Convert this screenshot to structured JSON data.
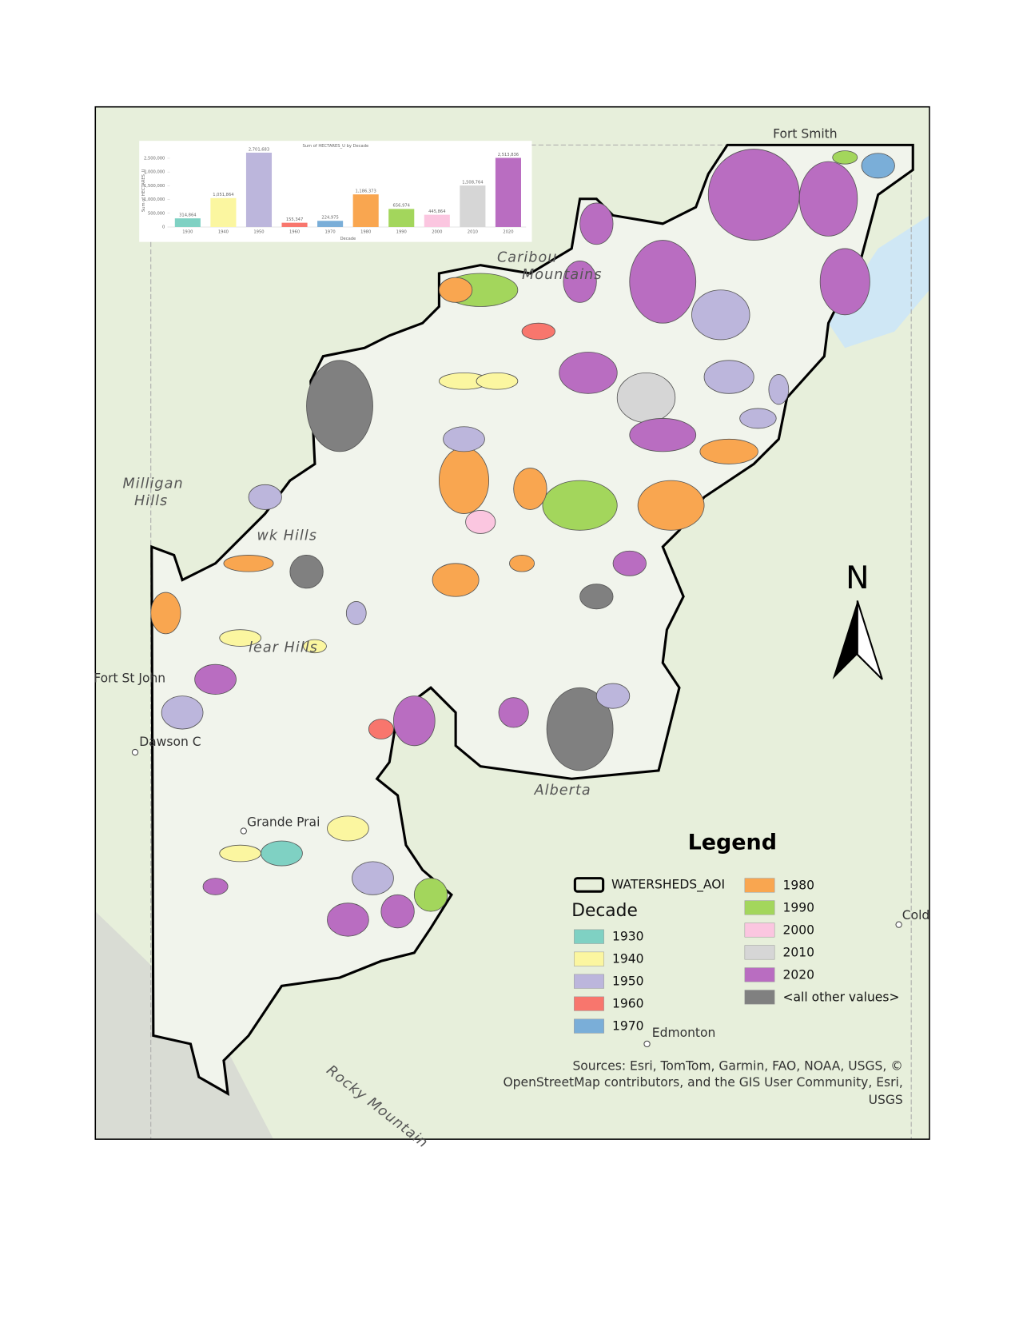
{
  "places": [
    "Fort Smith",
    "Caribou",
    "Mountains",
    "Milligan",
    "Hills",
    "wk Hills",
    "lear Hills",
    "Fort St John",
    "Dawson C",
    "Grande Prai",
    "Alberta",
    "Edmonton",
    "Cold",
    "Rocky Mountain"
  ],
  "legend": {
    "title": "Legend",
    "aoi": "WATERSHEDS_AOI",
    "field": "Decade",
    "items": [
      {
        "label": "1930",
        "color": "#7fd1c3"
      },
      {
        "label": "1940",
        "color": "#fbf6a0"
      },
      {
        "label": "1950",
        "color": "#bcb6dc"
      },
      {
        "label": "1960",
        "color": "#f8766d"
      },
      {
        "label": "1970",
        "color": "#7aaed8"
      },
      {
        "label": "1980",
        "color": "#f9a650"
      },
      {
        "label": "1990",
        "color": "#a3d65c"
      },
      {
        "label": "2000",
        "color": "#fbc6e0"
      },
      {
        "label": "2010",
        "color": "#d6d6d6"
      },
      {
        "label": "2020",
        "color": "#b96dc1"
      },
      {
        "label": "<all other values>",
        "color": "#808080"
      }
    ]
  },
  "north": "N",
  "attribution": [
    "Sources: Esri, TomTom, Garmin, FAO, NOAA, USGS, ©",
    "OpenStreetMap contributors, and the GIS User Community, Esri,",
    "USGS"
  ],
  "chart_data": {
    "type": "bar",
    "title": "Sum of HECTARES_U by Decade",
    "x_label": "Decade",
    "y_label": "Sum of HECTARES_U",
    "categories": [
      "1930",
      "1940",
      "1950",
      "1960",
      "1970",
      "1980",
      "1990",
      "2000",
      "2010",
      "2020"
    ],
    "values": [
      314864,
      1051864,
      2701683,
      155347,
      224975,
      1186373,
      656974,
      445864,
      1508764,
      2513836
    ],
    "value_labels": [
      "314,864",
      "1,051,864",
      "2,701,683",
      "155,347",
      "224,975",
      "1,186,373",
      "656,974",
      "445,864",
      "1,508,764",
      "2,513,836"
    ],
    "colors": [
      "#7fd1c3",
      "#fbf6a0",
      "#bcb6dc",
      "#f8766d",
      "#7aaed8",
      "#f9a650",
      "#a3d65c",
      "#fbc6e0",
      "#d6d6d6",
      "#b96dc1"
    ],
    "ylim": [
      0,
      2750000
    ],
    "yticks": [
      0,
      {
        "value": 500000,
        "label": "500,000"
      },
      {
        "value": 1000000,
        "label": "1,000,000"
      },
      {
        "value": 1500000,
        "label": "1,500,000"
      },
      {
        "value": 2000000,
        "label": "2,000,000"
      },
      {
        "value": 2500000,
        "label": "2,500,000"
      }
    ],
    "grid": false
  }
}
